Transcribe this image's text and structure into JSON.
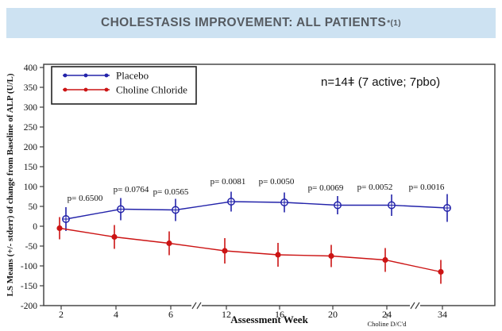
{
  "banner": {
    "title": "CHOLESTASIS IMPROVEMENT: ALL PATIENTS",
    "superscript": "*(1)",
    "bg_color": "#cde2f2",
    "text_color": "#565b61"
  },
  "chart_data": {
    "type": "line",
    "title": "",
    "xlabel": "Assessment Week",
    "ylabel": "LS Means (+/- stderr) of change from Baseline of ALP (U/L)",
    "note": "n=14ǂ (7 active; 7pbo)",
    "x": [
      2,
      4,
      6,
      12,
      16,
      20,
      24,
      34
    ],
    "x_axis_breaks": "axis break marks between weeks 6-12 and 24-34",
    "ylim": [
      -200,
      400
    ],
    "y_tick_step": 50,
    "grid": false,
    "legend_position": "top-left",
    "series": [
      {
        "name": "Placebo",
        "color": "#2323aa",
        "marker": "open-circle-plus",
        "values": [
          18,
          43,
          41,
          62,
          60,
          53,
          53,
          46
        ],
        "stderr": [
          30,
          28,
          28,
          25,
          25,
          23,
          27,
          35
        ]
      },
      {
        "name": "Choline Chloride",
        "color": "#cc1414",
        "marker": "filled-circle",
        "values": [
          -5,
          -27,
          -43,
          -62,
          -72,
          -75,
          -85,
          -115
        ],
        "stderr": [
          28,
          30,
          30,
          32,
          30,
          28,
          30,
          30
        ]
      }
    ],
    "p_values": [
      "p= 0.6500",
      "p= 0.0764",
      "p= 0.0565",
      "p= 0.0081",
      "p= 0.0050",
      "p= 0.0069",
      "p= 0.0052",
      "p= 0.0016"
    ],
    "event_annotation": {
      "symbol": "↑",
      "text": "Choline D/C'd",
      "at_week": 24
    }
  }
}
